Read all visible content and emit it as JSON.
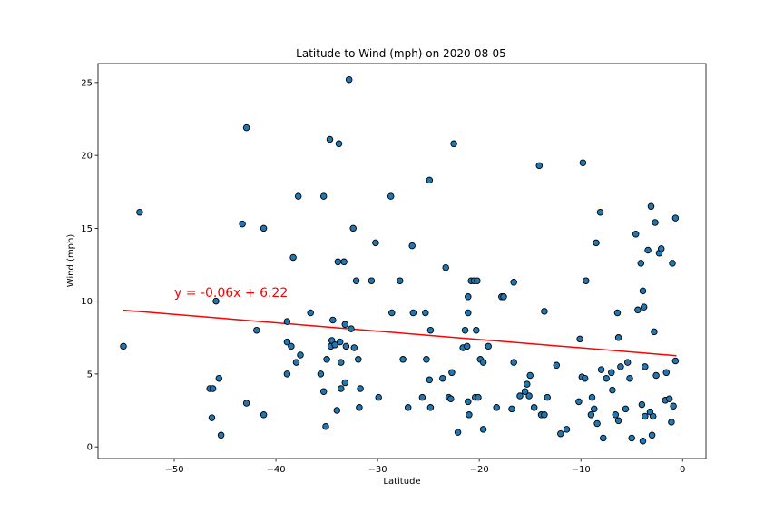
{
  "chart_data": {
    "type": "scatter",
    "title": "Latitude to Wind (mph) on 2020-08-05",
    "xlabel": "Latitude",
    "ylabel": "Wind (mph)",
    "xlim": [
      -57.5,
      2.3
    ],
    "ylim": [
      -0.8,
      26.3
    ],
    "xticks": [
      -50,
      -40,
      -30,
      -20,
      -10,
      0
    ],
    "xtick_labels": [
      "−50",
      "−40",
      "−30",
      "−20",
      "−10",
      "0"
    ],
    "yticks": [
      0,
      5,
      10,
      15,
      20,
      25
    ],
    "ytick_labels": [
      "0",
      "5",
      "10",
      "15",
      "20",
      "25"
    ],
    "grid": false,
    "marker_color": "#1f77b4",
    "marker_edge": "#000000",
    "regression": {
      "equation": "y = -0.06x + 6.22",
      "x_range": [
        -55,
        -0.6
      ],
      "slope": -0.0574,
      "intercept": 6.22,
      "color": "#ff0000",
      "label_at": [
        -50,
        10.3
      ]
    },
    "points": [
      [
        -55.0,
        6.9
      ],
      [
        -53.4,
        16.1
      ],
      [
        -46.5,
        4.0
      ],
      [
        -46.2,
        4.0
      ],
      [
        -46.3,
        2.0
      ],
      [
        -45.9,
        10.0
      ],
      [
        -45.6,
        4.7
      ],
      [
        -45.4,
        0.8
      ],
      [
        -43.3,
        15.3
      ],
      [
        -42.9,
        21.9
      ],
      [
        -42.9,
        3.0
      ],
      [
        -41.9,
        8.0
      ],
      [
        -41.2,
        15.0
      ],
      [
        -41.2,
        2.2
      ],
      [
        -38.9,
        8.6
      ],
      [
        -38.9,
        7.2
      ],
      [
        -38.9,
        5.0
      ],
      [
        -38.5,
        6.9
      ],
      [
        -38.3,
        13.0
      ],
      [
        -38.0,
        5.8
      ],
      [
        -37.8,
        17.2
      ],
      [
        -37.6,
        6.3
      ],
      [
        -36.6,
        9.2
      ],
      [
        -35.6,
        5.0
      ],
      [
        -35.3,
        3.8
      ],
      [
        -35.3,
        17.2
      ],
      [
        -35.1,
        1.4
      ],
      [
        -35.0,
        6.0
      ],
      [
        -34.7,
        21.1
      ],
      [
        -34.6,
        6.9
      ],
      [
        -34.5,
        7.3
      ],
      [
        -34.4,
        8.7
      ],
      [
        -34.2,
        7.0
      ],
      [
        -34.0,
        2.5
      ],
      [
        -33.9,
        12.7
      ],
      [
        -33.8,
        20.8
      ],
      [
        -33.7,
        7.2
      ],
      [
        -33.6,
        5.8
      ],
      [
        -33.6,
        4.0
      ],
      [
        -33.3,
        12.7
      ],
      [
        -33.2,
        8.4
      ],
      [
        -33.1,
        6.9
      ],
      [
        -33.2,
        4.4
      ],
      [
        -32.8,
        25.2
      ],
      [
        -32.6,
        8.1
      ],
      [
        -32.4,
        15.0
      ],
      [
        -32.3,
        6.8
      ],
      [
        -32.1,
        11.4
      ],
      [
        -31.9,
        6.0
      ],
      [
        -31.8,
        2.7
      ],
      [
        -31.7,
        4.0
      ],
      [
        -30.6,
        11.4
      ],
      [
        -30.2,
        14.0
      ],
      [
        -29.9,
        3.4
      ],
      [
        -28.7,
        17.2
      ],
      [
        -28.6,
        9.2
      ],
      [
        -27.8,
        11.4
      ],
      [
        -27.5,
        6.0
      ],
      [
        -27.0,
        2.7
      ],
      [
        -26.6,
        13.8
      ],
      [
        -26.5,
        9.2
      ],
      [
        -25.6,
        3.4
      ],
      [
        -25.3,
        9.2
      ],
      [
        -25.2,
        6.0
      ],
      [
        -24.9,
        18.3
      ],
      [
        -24.8,
        8.0
      ],
      [
        -24.9,
        4.6
      ],
      [
        -24.8,
        2.7
      ],
      [
        -23.6,
        4.7
      ],
      [
        -23.3,
        12.3
      ],
      [
        -23.0,
        3.4
      ],
      [
        -22.8,
        3.3
      ],
      [
        -22.7,
        5.1
      ],
      [
        -22.5,
        20.8
      ],
      [
        -22.1,
        1.0
      ],
      [
        -21.6,
        6.8
      ],
      [
        -21.4,
        8.0
      ],
      [
        -21.2,
        6.9
      ],
      [
        -21.1,
        10.3
      ],
      [
        -21.1,
        9.2
      ],
      [
        -21.1,
        3.1
      ],
      [
        -21.0,
        2.2
      ],
      [
        -20.8,
        11.4
      ],
      [
        -20.5,
        11.4
      ],
      [
        -20.4,
        3.4
      ],
      [
        -20.3,
        8.0
      ],
      [
        -20.2,
        11.4
      ],
      [
        -20.1,
        3.4
      ],
      [
        -19.9,
        6.0
      ],
      [
        -19.6,
        5.8
      ],
      [
        -19.6,
        1.2
      ],
      [
        -19.1,
        6.9
      ],
      [
        -18.3,
        2.7
      ],
      [
        -17.8,
        10.3
      ],
      [
        -17.6,
        10.3
      ],
      [
        -16.8,
        2.6
      ],
      [
        -16.6,
        5.8
      ],
      [
        -16.6,
        11.3
      ],
      [
        -16.0,
        3.5
      ],
      [
        -15.5,
        3.8
      ],
      [
        -15.3,
        4.3
      ],
      [
        -15.1,
        3.5
      ],
      [
        -15.0,
        4.9
      ],
      [
        -14.6,
        2.7
      ],
      [
        -14.1,
        19.3
      ],
      [
        -13.9,
        2.2
      ],
      [
        -13.6,
        2.2
      ],
      [
        -13.6,
        9.3
      ],
      [
        -13.3,
        3.4
      ],
      [
        -12.4,
        5.6
      ],
      [
        -12.0,
        0.9
      ],
      [
        -11.4,
        1.2
      ],
      [
        -10.2,
        3.1
      ],
      [
        -10.1,
        7.4
      ],
      [
        -9.9,
        4.8
      ],
      [
        -9.8,
        19.5
      ],
      [
        -9.6,
        4.7
      ],
      [
        -9.5,
        11.4
      ],
      [
        -9.0,
        2.2
      ],
      [
        -8.9,
        3.4
      ],
      [
        -8.7,
        2.6
      ],
      [
        -8.5,
        14.0
      ],
      [
        -8.4,
        1.6
      ],
      [
        -8.1,
        16.1
      ],
      [
        -8.0,
        5.3
      ],
      [
        -7.8,
        0.6
      ],
      [
        -7.5,
        4.7
      ],
      [
        -7.0,
        5.1
      ],
      [
        -6.9,
        3.9
      ],
      [
        -6.6,
        2.2
      ],
      [
        -6.4,
        9.2
      ],
      [
        -6.3,
        7.5
      ],
      [
        -6.3,
        1.8
      ],
      [
        -6.1,
        5.5
      ],
      [
        -5.6,
        2.6
      ],
      [
        -5.4,
        5.8
      ],
      [
        -5.2,
        4.7
      ],
      [
        -5.0,
        0.6
      ],
      [
        -4.6,
        14.6
      ],
      [
        -4.4,
        9.4
      ],
      [
        -4.1,
        12.6
      ],
      [
        -4.0,
        2.9
      ],
      [
        -3.9,
        0.4
      ],
      [
        -3.9,
        10.7
      ],
      [
        -3.8,
        9.6
      ],
      [
        -3.7,
        5.5
      ],
      [
        -3.7,
        2.1
      ],
      [
        -3.4,
        13.5
      ],
      [
        -3.2,
        2.4
      ],
      [
        -3.1,
        16.5
      ],
      [
        -3.0,
        0.8
      ],
      [
        -2.9,
        2.1
      ],
      [
        -2.8,
        7.9
      ],
      [
        -2.7,
        15.4
      ],
      [
        -2.6,
        4.9
      ],
      [
        -2.3,
        13.3
      ],
      [
        -2.1,
        13.6
      ],
      [
        -1.7,
        3.2
      ],
      [
        -1.6,
        5.1
      ],
      [
        -1.3,
        3.3
      ],
      [
        -1.1,
        1.7
      ],
      [
        -1.0,
        12.6
      ],
      [
        -0.9,
        2.8
      ],
      [
        -0.7,
        15.7
      ],
      [
        -0.7,
        5.9
      ]
    ]
  }
}
